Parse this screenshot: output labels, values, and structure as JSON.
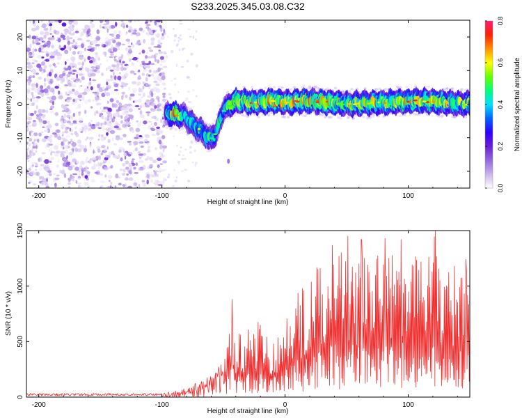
{
  "title": "S233.2025.345.03.08.C32",
  "colors": {
    "snr_line": "#ef3030",
    "colorbar": [
      "#ffffff",
      "#c9b3ec",
      "#9368dd",
      "#6a1fd6",
      "#2d00ff",
      "#0063ff",
      "#00e0ff",
      "#00ff7a",
      "#66ff00",
      "#ffff00",
      "#ff9000",
      "#ff2200",
      "#ff1a7a"
    ]
  },
  "chart_data": [
    {
      "type": "heatmap",
      "title": "S233.2025.345.03.08.C32",
      "xlabel": "Height of straight line (km)",
      "ylabel": "Frequency (Hz)",
      "xlim": [
        -210,
        150
      ],
      "ylim": [
        -25,
        25
      ],
      "xticks": [
        -200,
        -100,
        0,
        100
      ],
      "xtick_labels": [
        "-200",
        "-100",
        "0",
        "100"
      ],
      "yticks": [
        -20,
        -10,
        0,
        10,
        20
      ],
      "ytick_labels": [
        "-20",
        "-10",
        "0",
        "10",
        "20"
      ],
      "colorbar": {
        "label": "Normalized spectral amplitude",
        "range": [
          0.0,
          0.8
        ],
        "ticks": [
          0.0,
          0.2,
          0.4,
          0.6,
          0.8
        ],
        "tick_labels": [
          "0.0",
          "0.2",
          "0.4",
          "0.6",
          "0.8"
        ]
      },
      "features": {
        "noise_region_x": [
          -210,
          -97
        ],
        "noise_amplitude": 0.12,
        "signal_ridge": [
          {
            "x": -97,
            "y": -3.0,
            "amp": 0.35
          },
          {
            "x": -90,
            "y": -3.0,
            "amp": 0.7
          },
          {
            "x": -82,
            "y": -3.5,
            "amp": 0.4
          },
          {
            "x": -75,
            "y": -6.0,
            "amp": 0.45
          },
          {
            "x": -68,
            "y": -8.0,
            "amp": 0.5
          },
          {
            "x": -61,
            "y": -10.5,
            "amp": 0.45
          },
          {
            "x": -56,
            "y": -8.5,
            "amp": 0.4
          },
          {
            "x": -50,
            "y": -1.5,
            "amp": 0.45
          },
          {
            "x": -40,
            "y": 1.0,
            "amp": 0.6
          },
          {
            "x": -25,
            "y": 0.5,
            "amp": 0.6
          },
          {
            "x": -10,
            "y": 1.0,
            "amp": 0.65
          },
          {
            "x": 0,
            "y": 0.5,
            "amp": 0.6
          },
          {
            "x": 20,
            "y": 1.0,
            "amp": 0.65
          },
          {
            "x": 50,
            "y": 0.0,
            "amp": 0.55
          },
          {
            "x": 80,
            "y": 0.5,
            "amp": 0.6
          },
          {
            "x": 110,
            "y": 1.0,
            "amp": 0.6
          },
          {
            "x": 150,
            "y": 0.0,
            "amp": 0.55
          }
        ]
      }
    },
    {
      "type": "line",
      "xlabel": "Height of straight line (km)",
      "ylabel": "SNR (10 * v/v)",
      "xlim": [
        -210,
        150
      ],
      "ylim": [
        0,
        1500
      ],
      "xticks": [
        -200,
        -100,
        0,
        100
      ],
      "xtick_labels": [
        "-200",
        "-100",
        "0",
        "100"
      ],
      "yticks": [
        0,
        500,
        1000,
        1500
      ],
      "ytick_labels": [
        "0",
        "500",
        "1000",
        "1500"
      ],
      "series": [
        {
          "name": "SNR",
          "envelope": {
            "x": [
              -210,
              -100,
              -80,
              -60,
              -50,
              -43,
              -40,
              -30,
              -20,
              -10,
              0,
              10,
              20,
              30,
              40,
              50,
              60,
              70,
              80,
              90,
              100,
              110,
              120,
              130,
              140,
              150
            ],
            "y": [
              35,
              35,
              80,
              200,
              320,
              880,
              560,
              650,
              700,
              500,
              700,
              950,
              1100,
              1250,
              1420,
              1440,
              1300,
              1420,
              1280,
              1420,
              1400,
              1250,
              1500,
              1300,
              1180,
              1200
            ]
          },
          "peaks": [
            {
              "x": -43,
              "y": 880
            },
            {
              "x": 51,
              "y": 1450
            },
            {
              "x": 62,
              "y": 1420
            },
            {
              "x": 81,
              "y": 1430
            },
            {
              "x": 94,
              "y": 1420
            },
            {
              "x": 122,
              "y": 1500
            },
            {
              "x": 147,
              "y": 1240
            }
          ]
        }
      ]
    }
  ]
}
